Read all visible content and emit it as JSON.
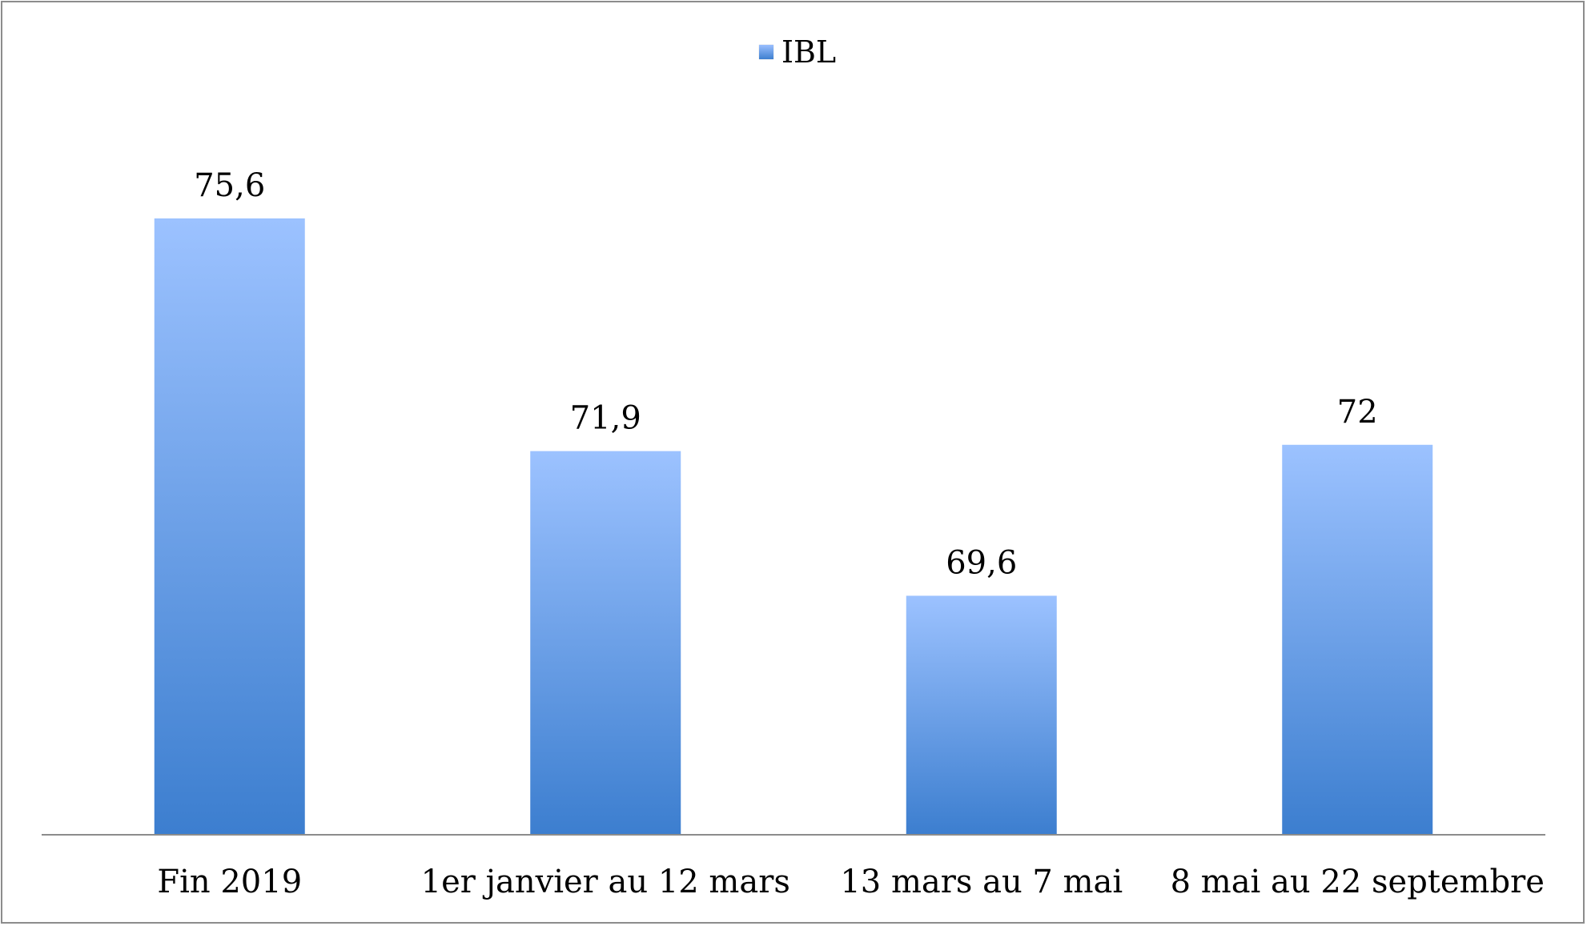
{
  "chart_data": {
    "type": "bar",
    "title": "",
    "xlabel": "",
    "ylabel": "",
    "categories": [
      "Fin 2019",
      "1er janvier au 12 mars",
      "13 mars au 7 mai",
      "8 mai au 22 septembre"
    ],
    "series": [
      {
        "name": "IBL",
        "values": [
          75.6,
          71.9,
          69.6,
          72
        ],
        "labels": [
          "75,6",
          "71,9",
          "69,6",
          "72"
        ]
      }
    ],
    "ylim": [
      65.8,
      76.4
    ],
    "grid": false,
    "legend_position": "top-center",
    "colors": {
      "bar_top": "#9cc2ff",
      "bar_bottom": "#3c7ecf",
      "axis": "#8c8c8c"
    }
  }
}
